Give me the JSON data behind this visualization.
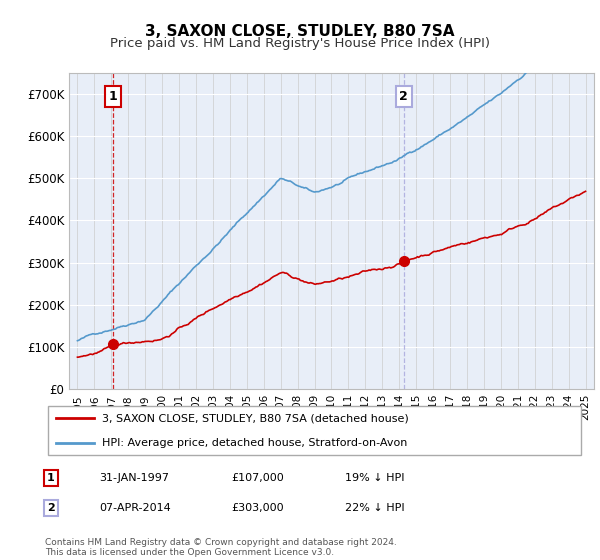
{
  "title": "3, SAXON CLOSE, STUDLEY, B80 7SA",
  "subtitle": "Price paid vs. HM Land Registry's House Price Index (HPI)",
  "background_color": "#ffffff",
  "plot_bg_color": "#e8eef8",
  "line1_color": "#cc0000",
  "line2_color": "#5599cc",
  "ylim": [
    0,
    750000
  ],
  "yticks": [
    0,
    100000,
    200000,
    300000,
    400000,
    500000,
    600000,
    700000
  ],
  "ytick_labels": [
    "£0",
    "£100K",
    "£200K",
    "£300K",
    "£400K",
    "£500K",
    "£600K",
    "£700K"
  ],
  "xmin": 1994.5,
  "xmax": 2025.5,
  "sale1_x": 1997.08,
  "sale1_y": 107000,
  "sale1_label": "1",
  "sale1_vline_color": "#cc0000",
  "sale2_x": 2014.27,
  "sale2_y": 303000,
  "sale2_label": "2",
  "sale2_vline_color": "#aaaadd",
  "legend_line1": "3, SAXON CLOSE, STUDLEY, B80 7SA (detached house)",
  "legend_line2": "HPI: Average price, detached house, Stratford-on-Avon",
  "table_rows": [
    {
      "num": "1",
      "date": "31-JAN-1997",
      "price": "£107,000",
      "hpi": "19% ↓ HPI",
      "box_color": "#cc0000"
    },
    {
      "num": "2",
      "date": "07-APR-2014",
      "price": "£303,000",
      "hpi": "22% ↓ HPI",
      "box_color": "#aaaadd"
    }
  ],
  "footer": "Contains HM Land Registry data © Crown copyright and database right 2024.\nThis data is licensed under the Open Government Licence v3.0.",
  "title_fontsize": 11,
  "subtitle_fontsize": 9.5,
  "axis_fontsize": 8.5
}
